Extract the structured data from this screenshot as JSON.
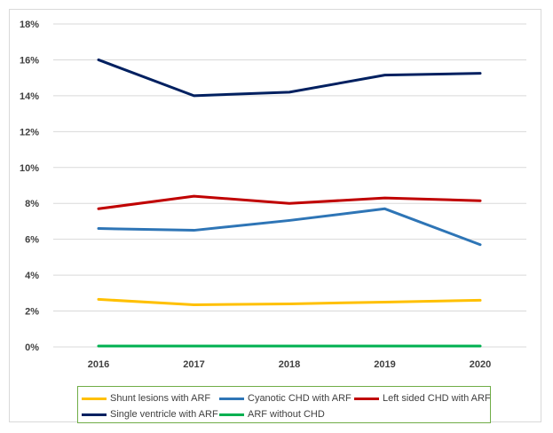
{
  "chart_data": {
    "type": "line",
    "title": "",
    "xlabel": "",
    "ylabel": "",
    "categories": [
      "2016",
      "2017",
      "2018",
      "2019",
      "2020"
    ],
    "ylim": [
      0,
      18
    ],
    "y_ticks": [
      0,
      2,
      4,
      6,
      8,
      10,
      12,
      14,
      16,
      18
    ],
    "y_tick_labels": [
      "0%",
      "2%",
      "4%",
      "6%",
      "8%",
      "10%",
      "12%",
      "14%",
      "16%",
      "18%"
    ],
    "grid": true,
    "legend_position": "bottom",
    "series": [
      {
        "name": "Shunt lesions with ARF",
        "color": "#ffc000",
        "values": [
          2.65,
          2.35,
          2.4,
          2.5,
          2.6
        ]
      },
      {
        "name": "Cyanotic CHD with ARF",
        "color": "#2e75b6",
        "values": [
          6.6,
          6.5,
          7.05,
          7.7,
          5.7
        ]
      },
      {
        "name": "Left sided CHD with ARF",
        "color": "#c00000",
        "values": [
          7.7,
          8.4,
          8.0,
          8.3,
          8.15
        ]
      },
      {
        "name": "Single ventricle with ARF",
        "color": "#002060",
        "values": [
          16.0,
          14.0,
          14.2,
          15.15,
          15.25
        ]
      },
      {
        "name": "ARF without CHD",
        "color": "#00b050",
        "values": [
          0.05,
          0.05,
          0.05,
          0.05,
          0.05
        ]
      }
    ]
  }
}
